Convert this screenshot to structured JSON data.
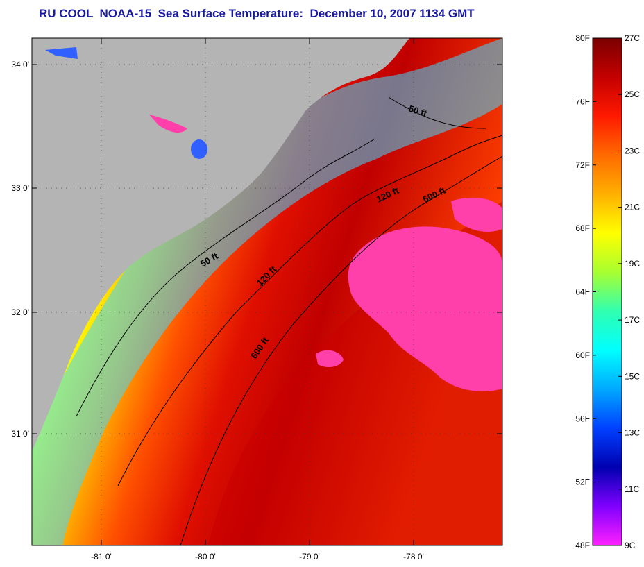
{
  "title": "RU COOL  NOAA-15  Sea Surface Temperature:  December 10, 2007 1134 GMT",
  "map": {
    "lon_ticks": [
      "-81 0'",
      "-80 0'",
      "-79 0'",
      "-78 0'"
    ],
    "lat_ticks": [
      "34 0'",
      "33 0'",
      "32 0'",
      "31 0'"
    ],
    "land_color": "#b4b4b4",
    "cloud_color": "#ff3faa",
    "contour_labels": [
      {
        "text": "50 ft"
      },
      {
        "text": "50 ft"
      },
      {
        "text": "120 ft"
      },
      {
        "text": "120 ft"
      },
      {
        "text": "600 ft"
      },
      {
        "text": "600 ft"
      }
    ]
  },
  "colorbar": {
    "fahrenheit_labels": [
      "80F",
      "76F",
      "72F",
      "68F",
      "64F",
      "60F",
      "56F",
      "52F",
      "48F"
    ],
    "celsius_labels": [
      "27C",
      "25C",
      "23C",
      "21C",
      "19C",
      "17C",
      "15C",
      "13C",
      "11C",
      "9C"
    ],
    "gradient_stops": [
      "#7a0000",
      "#c40000",
      "#ff1a00",
      "#ff6a00",
      "#ffb000",
      "#ffff00",
      "#a8ff30",
      "#30ffb0",
      "#00ffff",
      "#00a8ff",
      "#0040ff",
      "#0000b0",
      "#8000ff",
      "#ff20ff"
    ]
  }
}
